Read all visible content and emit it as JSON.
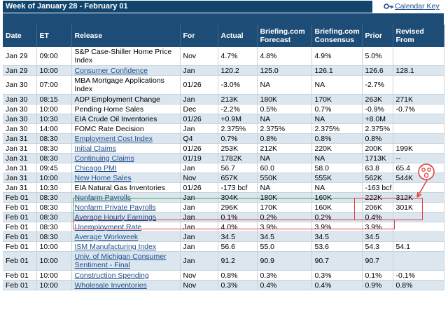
{
  "header": {
    "title": "Week of January 28 - February 01",
    "calendar_key_label": "Calendar Key"
  },
  "columns": [
    "Date",
    "ET",
    "Release",
    "For",
    "Actual",
    "Briefing.com Forecast",
    "Briefing.com Consensus",
    "Prior",
    "Revised From"
  ],
  "rows": [
    {
      "date": "Jan 29",
      "et": "09:00",
      "release": "S&P Case-Shiller Home Price Index",
      "link": false,
      "for": "Nov",
      "actual": "4.7%",
      "forecast": "4.8%",
      "consensus": "4.9%",
      "prior": "5.0%",
      "revised": ""
    },
    {
      "date": "Jan 29",
      "et": "10:00",
      "release": "Consumer Confidence",
      "link": true,
      "for": "Jan",
      "actual": "120.2",
      "forecast": "125.0",
      "consensus": "126.1",
      "prior": "126.6",
      "revised": "128.1"
    },
    {
      "date": "Jan 30",
      "et": "07:00",
      "release": "MBA Mortgage Applications Index",
      "link": false,
      "for": "01/26",
      "actual": "-3.0%",
      "forecast": "NA",
      "consensus": "NA",
      "prior": "-2.7%",
      "revised": ""
    },
    {
      "date": "Jan 30",
      "et": "08:15",
      "release": "ADP Employment Change",
      "link": false,
      "for": "Jan",
      "actual": "213K",
      "forecast": "180K",
      "consensus": "170K",
      "prior": "263K",
      "revised": "271K"
    },
    {
      "date": "Jan 30",
      "et": "10:00",
      "release": "Pending Home Sales",
      "link": false,
      "for": "Dec",
      "actual": "-2.2%",
      "forecast": "0.5%",
      "consensus": "0.7%",
      "prior": "-0.9%",
      "revised": "-0.7%"
    },
    {
      "date": "Jan 30",
      "et": "10:30",
      "release": "EIA Crude Oil Inventories",
      "link": false,
      "for": "01/26",
      "actual": "+0.9M",
      "forecast": "NA",
      "consensus": "NA",
      "prior": "+8.0M",
      "revised": ""
    },
    {
      "date": "Jan 30",
      "et": "14:00",
      "release": "FOMC Rate Decision",
      "link": false,
      "for": "Jan",
      "actual": "2.375%",
      "forecast": "2.375%",
      "consensus": "2.375%",
      "prior": "2.375%",
      "revised": ""
    },
    {
      "date": "Jan 31",
      "et": "08:30",
      "release": "Employment Cost Index",
      "link": true,
      "for": "Q4",
      "actual": "0.7%",
      "forecast": "0.8%",
      "consensus": "0.8%",
      "prior": "0.8%",
      "revised": ""
    },
    {
      "date": "Jan 31",
      "et": "08:30",
      "release": "Initial Claims",
      "link": true,
      "for": "01/26",
      "actual": "253K",
      "forecast": "212K",
      "consensus": "220K",
      "prior": "200K",
      "revised": "199K"
    },
    {
      "date": "Jan 31",
      "et": "08:30",
      "release": "Continuing Claims",
      "link": true,
      "for": "01/19",
      "actual": "1782K",
      "forecast": "NA",
      "consensus": "NA",
      "prior": "1713K",
      "revised": "--"
    },
    {
      "date": "Jan 31",
      "et": "09:45",
      "release": "Chicago PMI",
      "link": true,
      "for": "Jan",
      "actual": "56.7",
      "forecast": "60.0",
      "consensus": "58.0",
      "prior": "63.8",
      "revised": "65.4"
    },
    {
      "date": "Jan 31",
      "et": "10:00",
      "release": "New Home Sales",
      "link": true,
      "for": "Nov",
      "actual": "657K",
      "forecast": "550K",
      "consensus": "555K",
      "prior": "562K",
      "revised": "544K"
    },
    {
      "date": "Jan 31",
      "et": "10:30",
      "release": "EIA Natural Gas Inventories",
      "link": false,
      "for": "01/26",
      "actual": "-173 bcf",
      "forecast": "NA",
      "consensus": "NA",
      "prior": "-163 bcf",
      "revised": ""
    },
    {
      "date": "Feb 01",
      "et": "08:30",
      "release": "Nonfarm Payrolls",
      "link": true,
      "for": "Jan",
      "actual": "304K",
      "forecast": "180K",
      "consensus": "160K",
      "prior": "222K",
      "revised": "312K"
    },
    {
      "date": "Feb 01",
      "et": "08:30",
      "release": "Nonfarm Private Payrolls",
      "link": true,
      "for": "Jan",
      "actual": "296K",
      "forecast": "170K",
      "consensus": "160K",
      "prior": "206K",
      "revised": "301K"
    },
    {
      "date": "Feb 01",
      "et": "08:30",
      "release": "Average Hourly Earnings",
      "link": true,
      "for": "Jan",
      "actual": "0.1%",
      "forecast": "0.2%",
      "consensus": "0.2%",
      "prior": "0.4%",
      "revised": ""
    },
    {
      "date": "Feb 01",
      "et": "08:30",
      "release": "Unemployment Rate",
      "link": true,
      "for": "Jan",
      "actual": "4.0%",
      "forecast": "3.9%",
      "consensus": "3.9%",
      "prior": "3.9%",
      "revised": ""
    },
    {
      "date": "Feb 01",
      "et": "08:30",
      "release": "Average Workweek",
      "link": true,
      "for": "Jan",
      "actual": "34.5",
      "forecast": "34.5",
      "consensus": "34.5",
      "prior": "34.5",
      "revised": ""
    },
    {
      "date": "Feb 01",
      "et": "10:00",
      "release": "ISM Manufacturing Index",
      "link": true,
      "for": "Jan",
      "actual": "56.6",
      "forecast": "55.0",
      "consensus": "53.6",
      "prior": "54.3",
      "revised": "54.1"
    },
    {
      "date": "Feb 01",
      "et": "10:00",
      "release": "Univ. of Michigan Consumer Sentiment - Final",
      "link": true,
      "for": "Jan",
      "actual": "91.2",
      "forecast": "90.9",
      "consensus": "90.7",
      "prior": "90.7",
      "revised": ""
    },
    {
      "date": "Feb 01",
      "et": "10:00",
      "release": "Construction Spending",
      "link": true,
      "for": "Nov",
      "actual": "0.8%",
      "forecast": "0.3%",
      "consensus": "0.3%",
      "prior": "0.1%",
      "revised": "-0.1%"
    },
    {
      "date": "Feb 01",
      "et": "10:00",
      "release": "Wholesale Inventories",
      "link": true,
      "for": "Nov",
      "actual": "0.3%",
      "forecast": "0.4%",
      "consensus": "0.4%",
      "prior": "0.9%",
      "revised": "0.8%"
    }
  ],
  "colors": {
    "header_bg": "#1d4d77",
    "title_bg": "#12456e",
    "row_alt": "#dbe6ef",
    "link": "#1a4d8c",
    "highlight_green": "#47a347",
    "highlight_red": "#e04040"
  },
  "icons": {
    "calendar_key": "key-icon",
    "annotation": "shocked-face-icon"
  }
}
